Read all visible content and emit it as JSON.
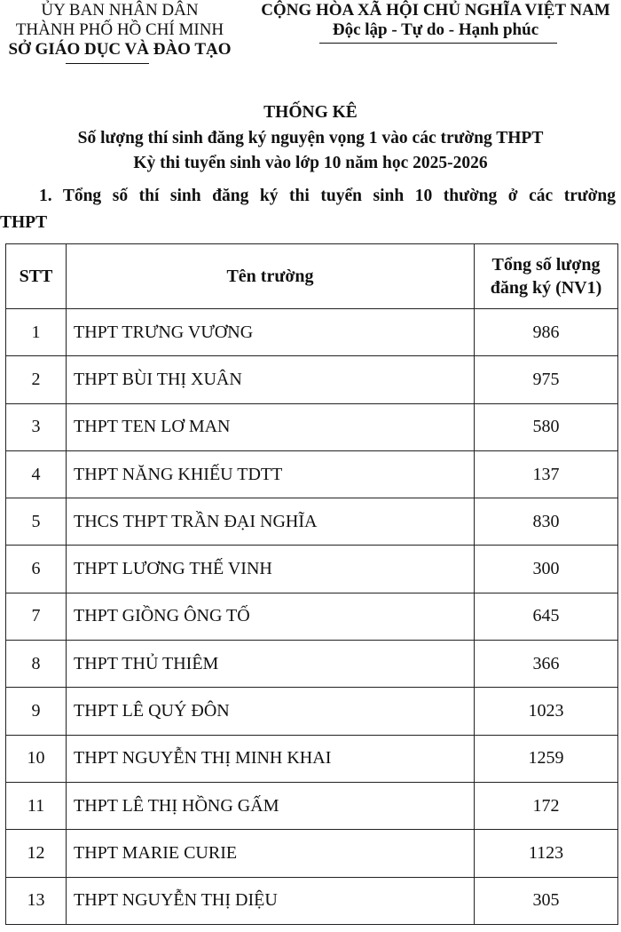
{
  "header_left": {
    "line1": "ỦY BAN NHÂN DÂN",
    "line2": "THÀNH PHỐ HỒ CHÍ MINH",
    "line3": "SỞ GIÁO DỤC VÀ ĐÀO TẠO"
  },
  "header_right": {
    "line1": "CỘNG HÒA XÃ HỘI CHỦ NGHĨA VIỆT NAM",
    "line2": "Độc lập - Tự do - Hạnh phúc"
  },
  "title": "THỐNG KÊ",
  "subtitle1": "Số lượng thí sinh đăng ký nguyện vọng 1 vào các trường THPT",
  "subtitle2": "Kỳ thi tuyển sinh vào lớp 10 năm học 2025-2026",
  "section1_line1": "1. Tổng số thí sinh đăng ký thi tuyển sinh 10 thường ở các trường",
  "section1_line2": "THPT",
  "table": {
    "headers": [
      "STT",
      "Tên trường",
      "Tổng số lượng",
      "đăng ký (NV1)"
    ],
    "rows": [
      {
        "stt": "1",
        "name": "THPT TRƯNG VƯƠNG",
        "count": "986"
      },
      {
        "stt": "2",
        "name": "THPT BÙI THỊ XUÂN",
        "count": "975"
      },
      {
        "stt": "3",
        "name": "THPT TEN LƠ MAN",
        "count": "580"
      },
      {
        "stt": "4",
        "name": "THPT NĂNG KHIẾU TDTT",
        "count": "137"
      },
      {
        "stt": "5",
        "name": "THCS THPT TRẦN ĐẠI NGHĨA",
        "count": "830"
      },
      {
        "stt": "6",
        "name": "THPT LƯƠNG THẾ VINH",
        "count": "300"
      },
      {
        "stt": "7",
        "name": "THPT GIỒNG ÔNG TỐ",
        "count": "645"
      },
      {
        "stt": "8",
        "name": "THPT THỦ THIÊM",
        "count": "366"
      },
      {
        "stt": "9",
        "name": "THPT LÊ QUÝ ĐÔN",
        "count": "1023"
      },
      {
        "stt": "10",
        "name": "THPT NGUYỄN THỊ MINH KHAI",
        "count": "1259"
      },
      {
        "stt": "11",
        "name": "THPT LÊ THỊ HỒNG GẤM",
        "count": "172"
      },
      {
        "stt": "12",
        "name": "THPT MARIE CURIE",
        "count": "1123"
      },
      {
        "stt": "13",
        "name": "THPT NGUYỄN THỊ DIỆU",
        "count": "305"
      }
    ]
  }
}
